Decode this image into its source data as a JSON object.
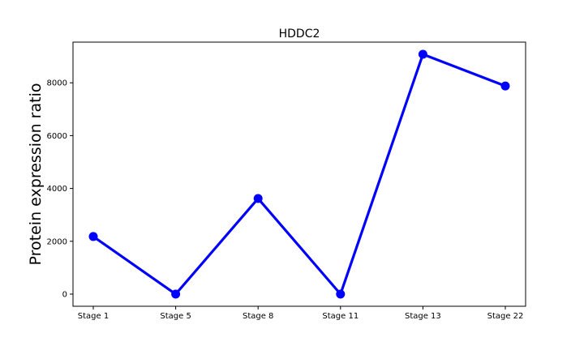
{
  "chart_data": {
    "type": "line",
    "title": "HDDC2",
    "xlabel": "",
    "ylabel": "Protein expression ratio",
    "categories": [
      "Stage 1",
      "Stage 5",
      "Stage 8",
      "Stage 11",
      "Stage 13",
      "Stage 22"
    ],
    "series": [
      {
        "values": [
          2180,
          0,
          3620,
          0,
          9080,
          7880
        ],
        "color": "#0000ff"
      }
    ],
    "ylim": [
      -460,
      9540
    ],
    "yticks": [
      0,
      2000,
      4000,
      6000,
      8000
    ],
    "grid": false,
    "marker": "circle"
  }
}
